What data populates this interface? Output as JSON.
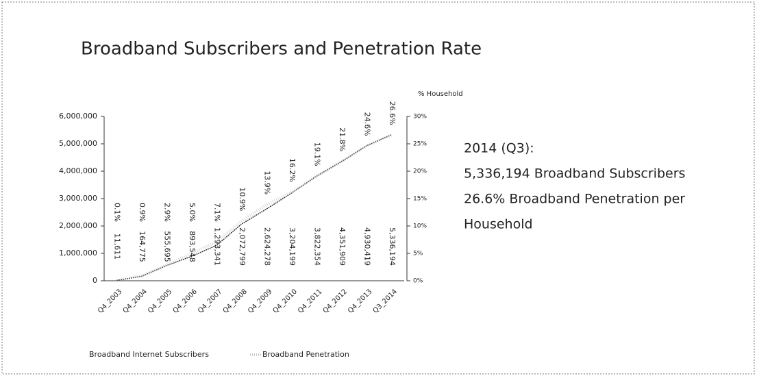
{
  "chart_data": {
    "type": "line",
    "title": "Broadband Subscribers and Penetration Rate",
    "y2_label": "% Household",
    "categories": [
      "Q4_2003",
      "Q4_2004",
      "Q4_2005",
      "Q4_2006",
      "Q4_2007",
      "Q4_2008",
      "Q4_2009",
      "Q4_2010",
      "Q4_2011",
      "Q4_2012",
      "Q4_2013",
      "Q3_2014"
    ],
    "series": [
      {
        "name": "Broadband Internet Subscribers",
        "color": "#333333",
        "values": [
          11611,
          164775,
          555695,
          893548,
          1293341,
          2072799,
          2624278,
          3204199,
          3822354,
          4351909,
          4930419,
          5336194
        ],
        "value_labels": [
          "11,611",
          "164,775",
          "555,695",
          "893,548",
          "1,293,341",
          "2,072,799",
          "2,624,278",
          "3,204,199",
          "3,822,354",
          "4,351,909",
          "4,930,419",
          "5,336,194"
        ]
      },
      {
        "name": "Broadband Penetration",
        "color": "#bbbbbb",
        "axis": "y2",
        "values": [
          0.1,
          0.9,
          2.9,
          5.0,
          7.1,
          10.9,
          13.9,
          16.2,
          19.1,
          21.8,
          24.6,
          26.6
        ],
        "value_labels": [
          "0.1%",
          "0.9%",
          "2.9%",
          "5.0%",
          "7.1%",
          "10.9%",
          "13.9%",
          "16.2%",
          "19.1%",
          "21.8%",
          "24.6%",
          "26.6%"
        ]
      }
    ],
    "ylim": [
      0,
      6000000
    ],
    "yticks": [
      0,
      {
        "value": 1000000,
        "label": "1,000,000"
      },
      {
        "value": 2000000,
        "label": "2,000,000"
      },
      {
        "value": 3000000,
        "label": "3,000,000"
      },
      {
        "value": 4000000,
        "label": "4,000,000"
      },
      {
        "value": 5000000,
        "label": "5,000,000"
      },
      {
        "value": 6000000,
        "label": "6,000,000"
      }
    ],
    "y2lim": [
      0,
      30
    ],
    "y2ticks": [
      {
        "value": 0,
        "label": "0%"
      },
      {
        "value": 5,
        "label": "5%"
      },
      {
        "value": 10,
        "label": "10%"
      },
      {
        "value": 15,
        "label": "15%"
      },
      {
        "value": 20,
        "label": "20%"
      },
      {
        "value": 25,
        "label": "25%"
      },
      {
        "value": 30,
        "label": "30%"
      }
    ],
    "annotations": [
      "2014 (Q3):",
      "5,336,194 Broadband Subscribers",
      "26.6% Broadband Penetration per",
      "Household"
    ],
    "legend": "bottom"
  }
}
